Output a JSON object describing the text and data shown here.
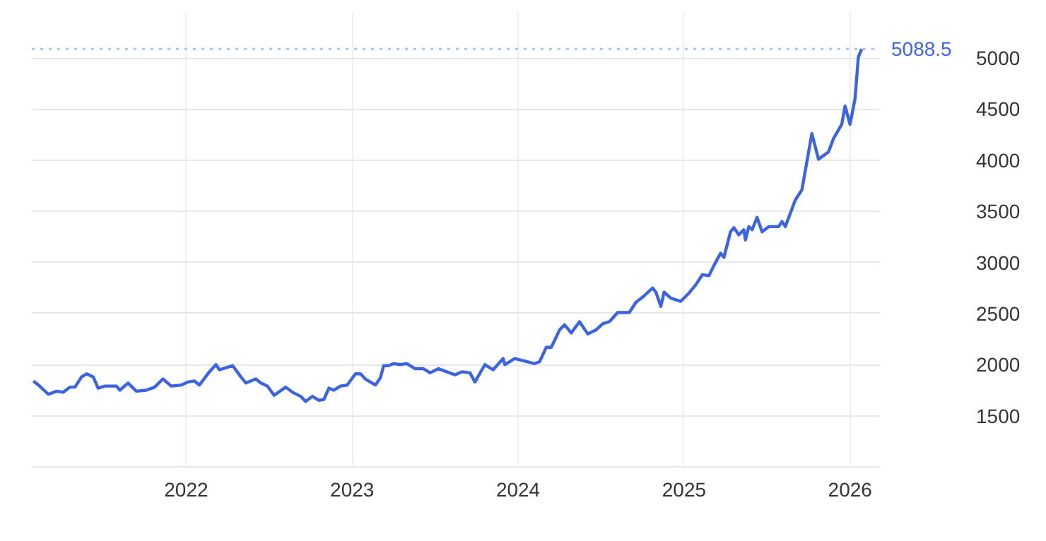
{
  "chart_data": {
    "type": "line",
    "x": [
      2021.08,
      2021.11,
      2021.17,
      2021.22,
      2021.26,
      2021.3,
      2021.33,
      2021.37,
      2021.4,
      2021.44,
      2021.47,
      2021.51,
      2021.58,
      2021.6,
      2021.65,
      2021.7,
      2021.76,
      2021.81,
      2021.86,
      2021.91,
      2021.97,
      2022.01,
      2022.05,
      2022.08,
      2022.14,
      2022.18,
      2022.2,
      2022.24,
      2022.28,
      2022.33,
      2022.36,
      2022.42,
      2022.45,
      2022.49,
      2022.53,
      2022.6,
      2022.64,
      2022.69,
      2022.72,
      2022.76,
      2022.8,
      2022.83,
      2022.86,
      2022.89,
      2022.93,
      2022.97,
      2023.02,
      2023.05,
      2023.08,
      2023.14,
      2023.17,
      2023.19,
      2023.22,
      2023.25,
      2023.29,
      2023.33,
      2023.38,
      2023.43,
      2023.47,
      2023.52,
      2023.57,
      2023.62,
      2023.66,
      2023.71,
      2023.74,
      2023.8,
      2023.85,
      2023.91,
      2023.92,
      2023.98,
      2024.05,
      2024.1,
      2024.13,
      2024.17,
      2024.2,
      2024.25,
      2024.28,
      2024.32,
      2024.37,
      2024.42,
      2024.47,
      2024.51,
      2024.55,
      2024.6,
      2024.67,
      2024.71,
      2024.75,
      2024.81,
      2024.83,
      2024.86,
      2024.88,
      2024.92,
      2024.98,
      2025.03,
      2025.07,
      2025.11,
      2025.15,
      2025.18,
      2025.22,
      2025.24,
      2025.28,
      2025.3,
      2025.33,
      2025.36,
      2025.37,
      2025.39,
      2025.41,
      2025.44,
      2025.47,
      2025.51,
      2025.57,
      2025.59,
      2025.61,
      2025.67,
      2025.71,
      2025.77,
      2025.81,
      2025.87,
      2025.9,
      2025.95,
      2025.97,
      2026.0,
      2026.03,
      2026.05,
      2026.07
    ],
    "series": [
      {
        "color": "#3b63e6",
        "values": [
          1840,
          1800,
          1710,
          1740,
          1730,
          1780,
          1780,
          1880,
          1910,
          1880,
          1770,
          1790,
          1790,
          1750,
          1820,
          1740,
          1750,
          1780,
          1860,
          1790,
          1800,
          1830,
          1840,
          1800,
          1930,
          2000,
          1950,
          1970,
          1990,
          1880,
          1820,
          1860,
          1820,
          1790,
          1700,
          1780,
          1730,
          1690,
          1640,
          1690,
          1650,
          1660,
          1770,
          1750,
          1790,
          1800,
          1910,
          1910,
          1860,
          1800,
          1870,
          1990,
          1990,
          2010,
          2000,
          2010,
          1960,
          1960,
          1920,
          1960,
          1930,
          1900,
          1930,
          1920,
          1830,
          2000,
          1950,
          2060,
          2000,
          2060,
          2030,
          2010,
          2030,
          2170,
          2170,
          2340,
          2390,
          2310,
          2420,
          2300,
          2340,
          2400,
          2420,
          2510,
          2510,
          2610,
          2660,
          2750,
          2710,
          2570,
          2710,
          2650,
          2620,
          2700,
          2780,
          2880,
          2870,
          2970,
          3090,
          3050,
          3300,
          3340,
          3270,
          3320,
          3220,
          3350,
          3320,
          3440,
          3300,
          3350,
          3350,
          3400,
          3350,
          3610,
          3710,
          4260,
          4010,
          4080,
          4210,
          4350,
          4530,
          4350,
          4600,
          5010,
          5088.5
        ]
      }
    ],
    "xlim": [
      2021.07,
      2026.18
    ],
    "ylim": [
      1000,
      5450
    ],
    "xticks": [
      2022,
      2023,
      2024,
      2025,
      2026
    ],
    "yticks": [
      1500,
      2000,
      2500,
      3000,
      3500,
      4000,
      4500,
      5000
    ],
    "ref_lines": [
      {
        "axis": "y",
        "value": 5088.5,
        "label": "5088.5",
        "color": "#a9bff2",
        "line_style": "dotted"
      }
    ],
    "grid": true,
    "line_style": "solid",
    "marker": "none"
  }
}
